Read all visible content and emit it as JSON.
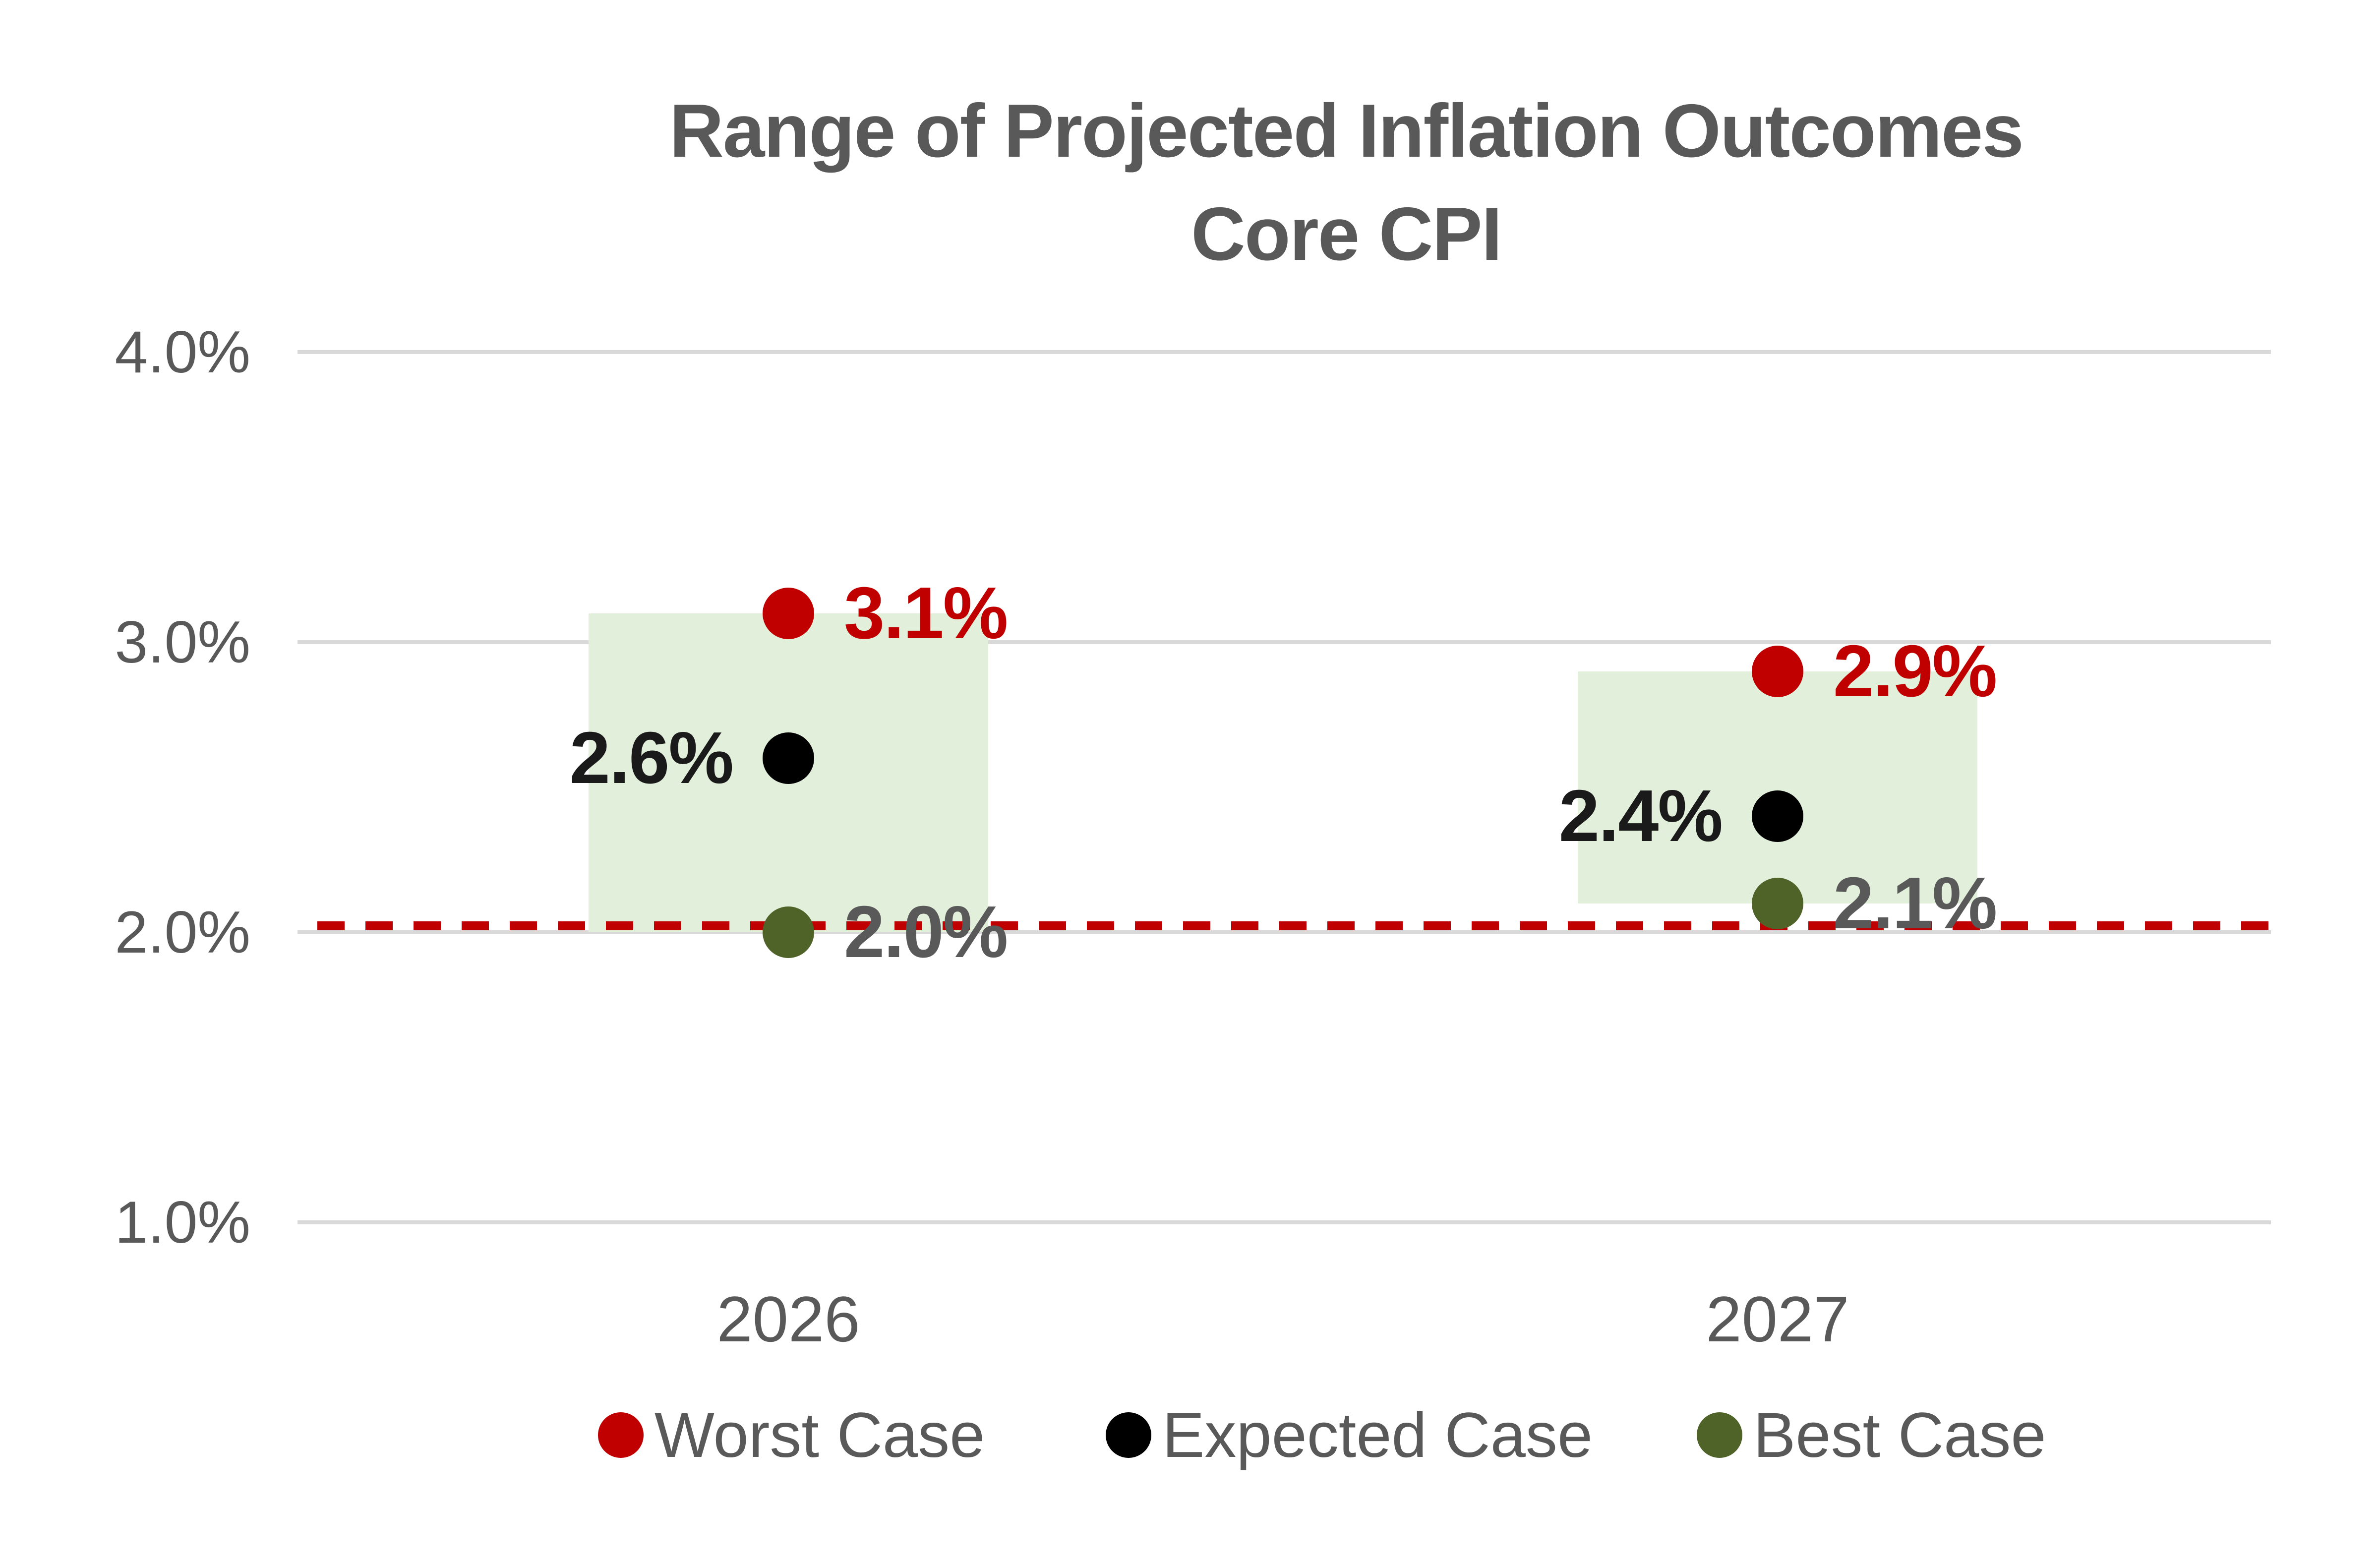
{
  "chart_data": {
    "type": "scatter",
    "title": "Range of Projected Inflation Outcomes",
    "subtitle": "Core CPI",
    "categories": [
      "2026",
      "2027"
    ],
    "series": [
      {
        "name": "Worst Case",
        "color": "#C00000",
        "label_color": "#C00000",
        "label_side": "right",
        "values": [
          3.1,
          2.9
        ],
        "labels": [
          "3.1%",
          "2.9%"
        ]
      },
      {
        "name": "Expected Case",
        "color": "#000000",
        "label_color": "#1A1A1A",
        "label_side": "left",
        "values": [
          2.6,
          2.4
        ],
        "labels": [
          "2.6%",
          "2.4%"
        ]
      },
      {
        "name": "Best Case",
        "color": "#4F6228",
        "label_color": "#595959",
        "label_side": "right",
        "values": [
          2.0,
          2.1
        ],
        "labels": [
          "2.0%",
          "2.1%"
        ]
      }
    ],
    "range_boxes": {
      "fill": "#E2EFDA",
      "low": [
        2.0,
        2.1
      ],
      "high": [
        3.1,
        2.9
      ]
    },
    "reference_line": {
      "value": 2.0,
      "color": "#C00000",
      "style": "dashed"
    },
    "y_axis": {
      "min": 1.0,
      "max": 4.0,
      "tick_values": [
        4.0,
        3.0,
        2.0,
        1.0
      ],
      "tick_labels": [
        "4.0%",
        "3.0%",
        "2.0%",
        "1.0%"
      ]
    },
    "x_axis": {
      "labels": [
        "2026",
        "2027"
      ]
    },
    "legend": {
      "position": "bottom",
      "entries": [
        "Worst Case",
        "Expected Case",
        "Best Case"
      ]
    },
    "grid": true
  },
  "colors": {
    "title_text": "#595959",
    "axis_text": "#595959",
    "gridline": "#D9D9D9"
  }
}
